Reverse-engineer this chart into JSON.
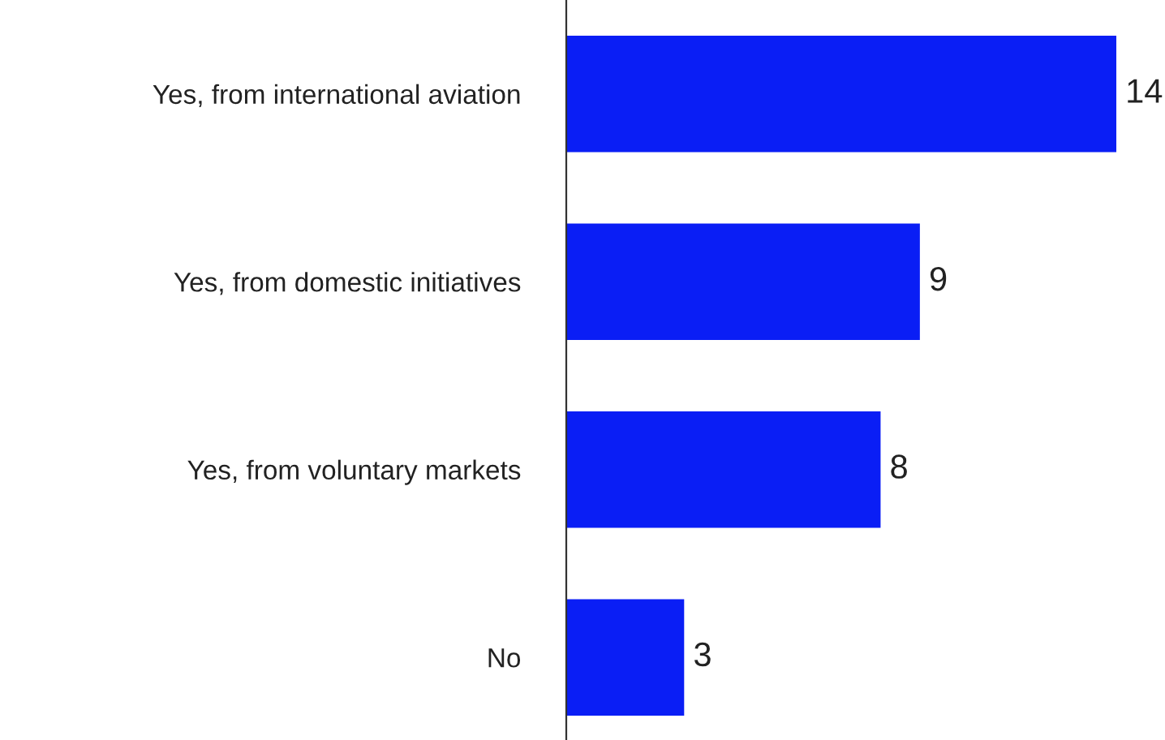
{
  "chart_data": {
    "type": "bar",
    "orientation": "horizontal",
    "categories": [
      "Yes, from international aviation",
      "Yes, from domestic initiatives",
      "Yes, from voluntary markets",
      "No"
    ],
    "values": [
      14,
      9,
      8,
      3
    ],
    "color": "#0a1ef5",
    "data_labels": true,
    "grid": false,
    "tick_labels": "y"
  }
}
